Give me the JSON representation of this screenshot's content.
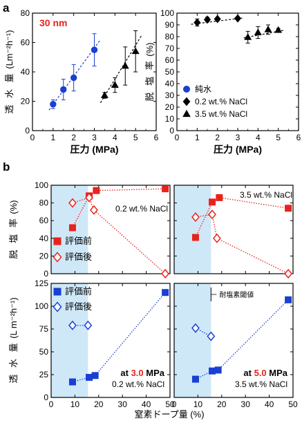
{
  "panel_labels": {
    "a": "a",
    "b": "b"
  },
  "chart_data": [
    {
      "type": "scatter",
      "id": "a-left",
      "annotation": "30 nm",
      "xlabel": "圧力 (MPa)",
      "ylabel": "透 水 量 (Lm⁻²h⁻¹)",
      "xlim": [
        0,
        6
      ],
      "ylim": [
        0,
        80
      ],
      "xticks": [
        "0",
        "1",
        "2",
        "3",
        "4",
        "5",
        "6"
      ],
      "yticks": [
        "0",
        "20",
        "40",
        "60",
        "80"
      ],
      "series": [
        {
          "name": "純水",
          "marker": "circle",
          "color": "#1a3fd4",
          "x": [
            1,
            1.5,
            2,
            3
          ],
          "y": [
            18,
            28,
            36,
            55
          ],
          "err": [
            3,
            7,
            9,
            11
          ],
          "trend": [
            [
              0.8,
              14
            ],
            [
              3.3,
              62
            ]
          ]
        },
        {
          "name": "3.5 wt.% NaCl",
          "marker": "triangle",
          "color": "#000000",
          "x": [
            3.5,
            4,
            4.5,
            5
          ],
          "y": [
            24,
            31,
            44,
            54
          ],
          "err": [
            2,
            5,
            13,
            14
          ],
          "trend": [
            [
              3.3,
              19
            ],
            [
              5.3,
              65
            ]
          ]
        }
      ]
    },
    {
      "type": "scatter",
      "id": "a-right",
      "xlabel": "圧力 (MPa)",
      "ylabel": "脱 塩 率 (%)",
      "xlim": [
        0,
        6
      ],
      "ylim": [
        0,
        100
      ],
      "xticks": [
        "0",
        "1",
        "2",
        "3",
        "4",
        "5",
        "6"
      ],
      "yticks": [
        "0",
        "10",
        "20",
        "30",
        "40",
        "50",
        "60",
        "70",
        "80",
        "90",
        "100"
      ],
      "legend": [
        {
          "label": "純水",
          "marker": "circle",
          "color": "#1a3fd4"
        },
        {
          "label": "0.2 wt.% NaCl",
          "marker": "diamond",
          "color": "#000000"
        },
        {
          "label": "3.5 wt.% NaCl",
          "marker": "triangle",
          "color": "#000000"
        }
      ],
      "series": [
        {
          "name": "0.2 wt.% NaCl",
          "marker": "diamond",
          "color": "#000000",
          "x": [
            1,
            1.5,
            2,
            3
          ],
          "y": [
            92,
            94.5,
            95,
            95.5
          ],
          "err": [
            3,
            2,
            1,
            0
          ],
          "trend": [
            [
              0.7,
              90.5
            ],
            [
              3.3,
              96
            ]
          ]
        },
        {
          "name": "3.5 wt.% NaCl",
          "marker": "triangle",
          "color": "#000000",
          "x": [
            3.5,
            4,
            4.5,
            5
          ],
          "y": [
            79.5,
            83.5,
            86,
            85.5
          ],
          "err": [
            5,
            5,
            4,
            1.5
          ],
          "trend": [
            [
              3.3,
              79
            ],
            [
              5.3,
              85.5
            ]
          ]
        }
      ]
    },
    {
      "type": "scatter",
      "id": "b-top-left",
      "condition": "0.2 wt.% NaCl",
      "ylabel": "脱 塩 率 (%)",
      "xlim": [
        0,
        50
      ],
      "ylim": [
        0,
        100
      ],
      "yticks": [
        "0",
        "20",
        "40",
        "60",
        "80",
        "100"
      ],
      "shade_to": 15.5,
      "legend": [
        {
          "label": "評価前",
          "marker": "square",
          "color": "#e8231c"
        },
        {
          "label": "評価後",
          "marker": "diamond-open",
          "color": "#e8231c"
        }
      ],
      "series": [
        {
          "name": "評価前",
          "marker": "square",
          "color": "#e8231c",
          "x": [
            9,
            16,
            19,
            48
          ],
          "y": [
            52,
            88,
            94,
            96
          ]
        },
        {
          "name": "評価後",
          "marker": "diamond-open",
          "color": "#e8231c",
          "x": [
            9,
            16,
            18,
            48
          ],
          "y": [
            80,
            86,
            72,
            0
          ]
        }
      ]
    },
    {
      "type": "scatter",
      "id": "b-top-right",
      "condition": "3.5 wt.% NaCl",
      "xlim": [
        0,
        50
      ],
      "ylim": [
        0,
        100
      ],
      "shade_to": 15.5,
      "series": [
        {
          "name": "評価前",
          "marker": "square",
          "color": "#e8231c",
          "x": [
            9,
            16,
            19,
            48
          ],
          "y": [
            41,
            81,
            86,
            74
          ]
        },
        {
          "name": "評価後",
          "marker": "diamond-open",
          "color": "#e8231c",
          "x": [
            9,
            16,
            18,
            48
          ],
          "y": [
            64,
            67,
            40,
            0
          ]
        }
      ]
    },
    {
      "type": "scatter",
      "id": "b-bottom-left",
      "ylabel": "透 水 量 (L m⁻²h⁻¹)",
      "xlim": [
        0,
        50
      ],
      "ylim": [
        0,
        125
      ],
      "xticks": [
        "0",
        "10",
        "20",
        "30",
        "40",
        "50"
      ],
      "yticks": [
        "0",
        "25",
        "50",
        "75",
        "100",
        "125"
      ],
      "shade_to": 15.5,
      "condition_pressure": {
        "prefix": "at ",
        "value": "3.0",
        "unit": " MPa"
      },
      "condition": "0.2 wt.% NaCl",
      "legend": [
        {
          "label": "評価前",
          "marker": "square",
          "color": "#1a3fd4"
        },
        {
          "label": "評価後",
          "marker": "diamond-open",
          "color": "#1a3fd4"
        }
      ],
      "series": [
        {
          "name": "評価前",
          "marker": "square",
          "color": "#1a3fd4",
          "x": [
            9,
            16,
            18.5,
            48
          ],
          "y": [
            17,
            22,
            24,
            115
          ]
        },
        {
          "name": "評価後",
          "marker": "diamond-open",
          "color": "#1a3fd4",
          "x": [
            9,
            15.5
          ],
          "y": [
            79,
            79
          ]
        }
      ]
    },
    {
      "type": "scatter",
      "id": "b-bottom-right",
      "xlim": [
        0,
        50
      ],
      "ylim": [
        0,
        125
      ],
      "xticks": [
        "0",
        "10",
        "20",
        "30",
        "40",
        "50"
      ],
      "shade_to": 15.5,
      "threshold_label": "耐塩素閾値",
      "condition_pressure": {
        "prefix": "at ",
        "value": "5.0",
        "unit": " MPa"
      },
      "condition": "3.5 wt.% NaCl",
      "series": [
        {
          "name": "評価前",
          "marker": "square",
          "color": "#1a3fd4",
          "x": [
            9,
            16,
            18.5,
            48
          ],
          "y": [
            20,
            29,
            30,
            107
          ]
        },
        {
          "name": "評価後",
          "marker": "diamond-open",
          "color": "#1a3fd4",
          "x": [
            9,
            15.5
          ],
          "y": [
            76,
            67
          ]
        }
      ]
    }
  ],
  "shared_xlabel_b": "窒素ドープ量 (%)"
}
